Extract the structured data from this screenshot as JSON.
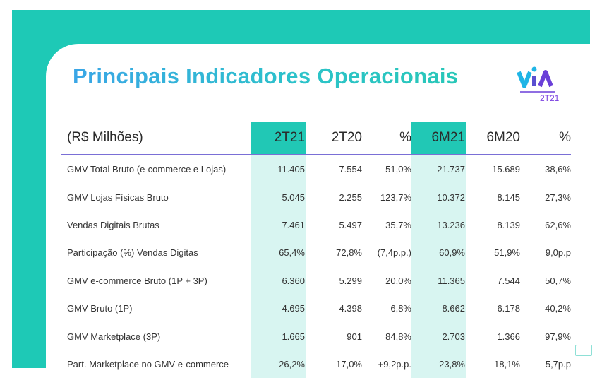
{
  "title": "Principais Indicadores Operacionais",
  "logo": {
    "text": "via",
    "period": "2T21"
  },
  "colors": {
    "frame": "#1ec9b6",
    "highlight_header": "#21c8b5",
    "highlight_body": "#d8f5f1",
    "header_rule": "#7a6fd6"
  },
  "table": {
    "headers": [
      "(R$ Milhões)",
      "2T21",
      "2T20",
      "%",
      "6M21",
      "6M20",
      "%"
    ],
    "rows": [
      [
        "GMV Total Bruto (e-commerce e Lojas)",
        "11.405",
        "7.554",
        "51,0%",
        "21.737",
        "15.689",
        "38,6%"
      ],
      [
        "GMV Lojas Físicas Bruto",
        "5.045",
        "2.255",
        "123,7%",
        "10.372",
        "8.145",
        "27,3%"
      ],
      [
        "Vendas Digitais Brutas",
        "7.461",
        "5.497",
        "35,7%",
        "13.236",
        "8.139",
        "62,6%"
      ],
      [
        "Participação (%) Vendas Digitas",
        "65,4%",
        "72,8%",
        "(7,4p.p.)",
        "60,9%",
        "51,9%",
        "9,0p.p"
      ],
      [
        "GMV e-commerce Bruto  (1P + 3P)",
        "6.360",
        "5.299",
        "20,0%",
        "11.365",
        "7.544",
        "50,7%"
      ],
      [
        "GMV Bruto  (1P)",
        "4.695",
        "4.398",
        "6,8%",
        "8.662",
        "6.178",
        "40,2%"
      ],
      [
        "GMV Marketplace (3P)",
        "1.665",
        "901",
        "84,8%",
        "2.703",
        "1.366",
        "97,9%"
      ],
      [
        "Part. Marketplace no GMV e-commerce",
        "26,2%",
        "17,0%",
        "+9,2p.p.",
        "23,8%",
        "18,1%",
        "5,7p.p"
      ]
    ]
  }
}
